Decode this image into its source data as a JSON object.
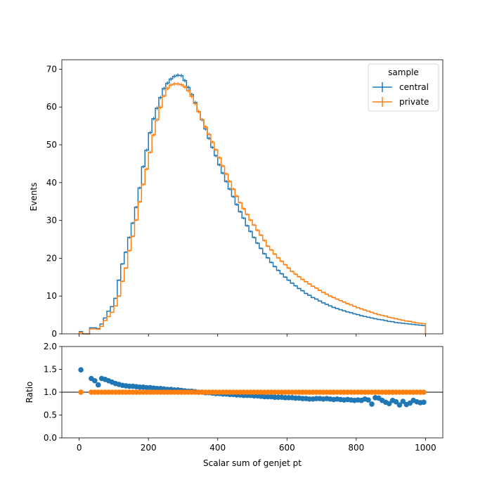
{
  "chart_data": [
    {
      "type": "line",
      "subtype": "step-histogram",
      "xlabel": "",
      "ylabel": "Events",
      "xlim": [
        -50,
        1050
      ],
      "ylim": [
        0,
        72.5
      ],
      "x_ticks": [
        0,
        200,
        400,
        600,
        800,
        1000
      ],
      "x_ticklabels_visible": false,
      "y_ticks": [
        0,
        10,
        20,
        30,
        40,
        50,
        60,
        70
      ],
      "legend": {
        "title": "sample",
        "placement": "top-right",
        "entries": [
          "central",
          "private"
        ]
      },
      "colors": {
        "central": "#1f77b4",
        "private": "#ff7f0e"
      },
      "bin_edges": [
        0,
        10,
        20,
        30,
        40,
        50,
        60,
        70,
        80,
        90,
        100,
        110,
        120,
        130,
        140,
        150,
        160,
        170,
        180,
        190,
        200,
        210,
        220,
        230,
        240,
        250,
        260,
        270,
        280,
        290,
        300,
        310,
        320,
        330,
        340,
        350,
        360,
        370,
        380,
        390,
        400,
        410,
        420,
        430,
        440,
        450,
        460,
        470,
        480,
        490,
        500,
        510,
        520,
        530,
        540,
        550,
        560,
        570,
        580,
        590,
        600,
        610,
        620,
        630,
        640,
        650,
        660,
        670,
        680,
        690,
        700,
        710,
        720,
        730,
        740,
        750,
        760,
        770,
        780,
        790,
        800,
        810,
        820,
        830,
        840,
        850,
        860,
        870,
        880,
        890,
        900,
        910,
        920,
        930,
        940,
        950,
        960,
        970,
        980,
        990,
        1000
      ],
      "series": [
        {
          "name": "central",
          "values": [
            0.6,
            0,
            0,
            1.6,
            1.6,
            1.4,
            2.6,
            4.2,
            6,
            7.2,
            9.4,
            14.2,
            18.5,
            21.6,
            25.5,
            29.3,
            33.5,
            38.6,
            44.2,
            48.6,
            53.2,
            56.9,
            59.7,
            62.5,
            64.9,
            66.3,
            67.4,
            68.1,
            68.4,
            68.3,
            67.0,
            65.2,
            63.3,
            61.2,
            58.8,
            56.6,
            54.2,
            51.7,
            49.3,
            47.1,
            44.7,
            42.5,
            40.3,
            38.3,
            36.3,
            34.2,
            32.3,
            30.6,
            28.6,
            27.1,
            25.5,
            24.0,
            22.6,
            21.2,
            20.1,
            18.9,
            17.8,
            16.8,
            15.9,
            15.0,
            14.2,
            13.4,
            12.7,
            12.0,
            11.4,
            10.7,
            10.2,
            9.6,
            9.2,
            8.7,
            8.2,
            7.8,
            7.4,
            7.0,
            6.7,
            6.4,
            6.1,
            5.8,
            5.6,
            5.3,
            5.1,
            4.8,
            4.6,
            4.4,
            4.2,
            4.0,
            3.8,
            3.7,
            3.5,
            3.3,
            3.2,
            3.0,
            2.9,
            2.8,
            2.7,
            2.6,
            2.5,
            2.4,
            2.3,
            2.2
          ]
        },
        {
          "name": "private",
          "values": [
            0.4,
            0,
            0,
            1.3,
            1.3,
            1.2,
            2.0,
            3.5,
            4.6,
            5.7,
            7.4,
            10.0,
            13.9,
            17.4,
            22.0,
            25.8,
            30.1,
            34.9,
            39.5,
            43.6,
            48.0,
            52.6,
            56.6,
            59.9,
            62.9,
            64.9,
            65.8,
            66.1,
            66.1,
            65.9,
            65.3,
            64.3,
            62.8,
            60.9,
            58.8,
            56.7,
            54.7,
            52.8,
            50.7,
            48.7,
            46.6,
            44.4,
            42.3,
            40.3,
            38.3,
            36.4,
            34.7,
            33.1,
            31.6,
            30.1,
            28.8,
            27.4,
            26.1,
            24.7,
            23.2,
            22.2,
            21.1,
            20.1,
            19.2,
            18.3,
            17.4,
            16.5,
            15.8,
            15.1,
            14.4,
            13.8,
            13.2,
            12.6,
            12.1,
            11.5,
            11.0,
            10.5,
            10.0,
            9.6,
            9.2,
            8.8,
            8.4,
            8.0,
            7.7,
            7.3,
            6.9,
            6.6,
            6.3,
            6.0,
            5.7,
            5.4,
            5.1,
            4.9,
            4.7,
            4.4,
            4.2,
            4.0,
            3.8,
            3.6,
            3.4,
            3.3,
            3.1,
            2.9,
            2.8,
            2.7
          ]
        }
      ]
    },
    {
      "type": "scatter",
      "xlabel": "Scalar sum of genjet pt",
      "ylabel": "Ratio",
      "xlim": [
        -50,
        1050
      ],
      "ylim": [
        0,
        2
      ],
      "x_ticks": [
        0,
        200,
        400,
        600,
        800,
        1000
      ],
      "y_ticks": [
        0.0,
        0.5,
        1.0,
        1.5,
        2.0
      ],
      "y_ticklabels": [
        "0.0",
        "0.5",
        "1.0",
        "1.5",
        "2.0"
      ],
      "reference_line": 1.0,
      "colors": {
        "central": "#1f77b4",
        "private": "#ff7f0e"
      },
      "x": [
        5,
        35,
        45,
        55,
        65,
        75,
        85,
        95,
        105,
        115,
        125,
        135,
        145,
        155,
        165,
        175,
        185,
        195,
        205,
        215,
        225,
        235,
        245,
        255,
        265,
        275,
        285,
        295,
        305,
        315,
        325,
        335,
        345,
        355,
        365,
        375,
        385,
        395,
        405,
        415,
        425,
        435,
        445,
        455,
        465,
        475,
        485,
        495,
        505,
        515,
        525,
        535,
        545,
        555,
        565,
        575,
        585,
        595,
        605,
        615,
        625,
        635,
        645,
        655,
        665,
        675,
        685,
        695,
        705,
        715,
        725,
        735,
        745,
        755,
        765,
        775,
        785,
        795,
        805,
        815,
        825,
        835,
        845,
        855,
        865,
        875,
        885,
        895,
        905,
        915,
        925,
        935,
        945,
        955,
        965,
        975,
        985,
        995
      ],
      "series": [
        {
          "name": "central",
          "values": [
            1.49,
            1.3,
            1.25,
            1.16,
            1.3,
            1.28,
            1.25,
            1.22,
            1.19,
            1.17,
            1.15,
            1.14,
            1.13,
            1.13,
            1.12,
            1.11,
            1.11,
            1.1,
            1.1,
            1.09,
            1.08,
            1.08,
            1.07,
            1.06,
            1.06,
            1.05,
            1.05,
            1.04,
            1.03,
            1.02,
            1.02,
            1.01,
            1.0,
            1.0,
            0.99,
            0.99,
            0.98,
            0.97,
            0.97,
            0.96,
            0.96,
            0.95,
            0.95,
            0.94,
            0.94,
            0.93,
            0.93,
            0.93,
            0.92,
            0.92,
            0.91,
            0.9,
            0.9,
            0.9,
            0.89,
            0.89,
            0.89,
            0.88,
            0.88,
            0.88,
            0.87,
            0.87,
            0.86,
            0.86,
            0.85,
            0.85,
            0.86,
            0.86,
            0.85,
            0.86,
            0.85,
            0.84,
            0.85,
            0.84,
            0.83,
            0.84,
            0.83,
            0.82,
            0.83,
            0.82,
            0.85,
            0.83,
            0.74,
            0.88,
            0.87,
            0.82,
            0.78,
            0.75,
            0.82,
            0.79,
            0.72,
            0.8,
            0.73,
            0.76,
            0.82,
            0.79,
            0.77,
            0.78
          ]
        },
        {
          "name": "private",
          "values": [
            1,
            1,
            1,
            1,
            1,
            1,
            1,
            1,
            1,
            1,
            1,
            1,
            1,
            1,
            1,
            1,
            1,
            1,
            1,
            1,
            1,
            1,
            1,
            1,
            1,
            1,
            1,
            1,
            1,
            1,
            1,
            1,
            1,
            1,
            1,
            1,
            1,
            1,
            1,
            1,
            1,
            1,
            1,
            1,
            1,
            1,
            1,
            1,
            1,
            1,
            1,
            1,
            1,
            1,
            1,
            1,
            1,
            1,
            1,
            1,
            1,
            1,
            1,
            1,
            1,
            1,
            1,
            1,
            1,
            1,
            1,
            1,
            1,
            1,
            1,
            1,
            1,
            1,
            1,
            1,
            1,
            1,
            1,
            1,
            1,
            1,
            1,
            1,
            1,
            1,
            1,
            1,
            1,
            1,
            1,
            1,
            1,
            1
          ]
        }
      ]
    }
  ]
}
